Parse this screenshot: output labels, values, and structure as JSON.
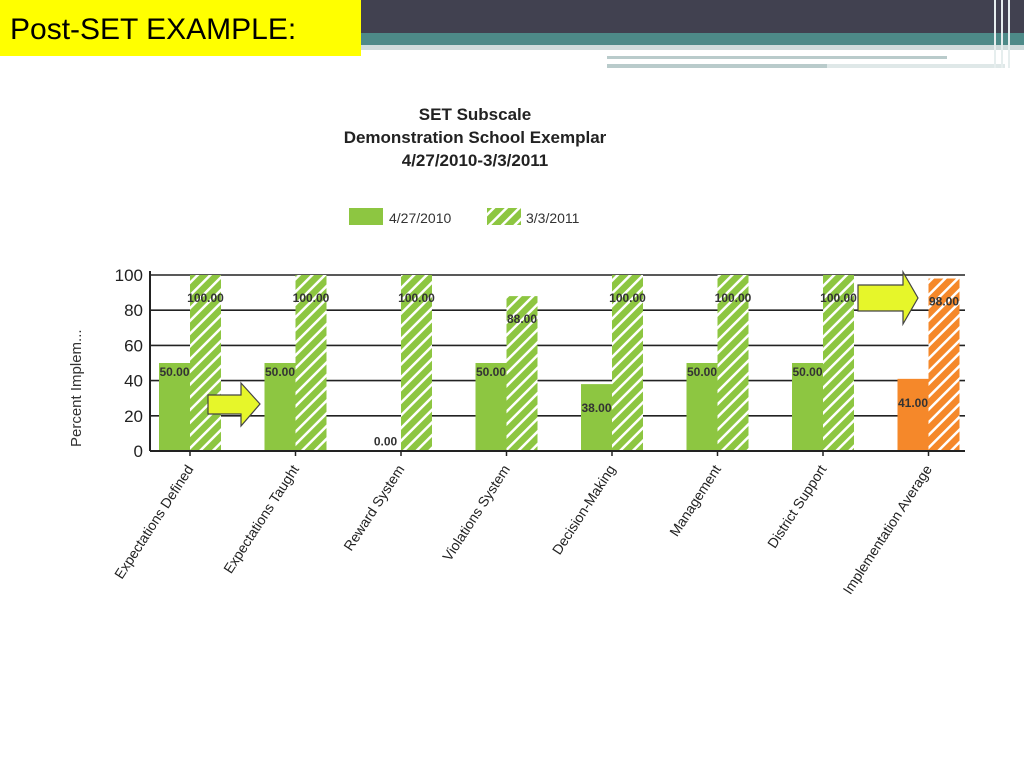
{
  "slide": {
    "title": "Post-SET EXAMPLE:"
  },
  "colors": {
    "series_2010": "#8dc641",
    "series_2011_stripe": "#8dc641",
    "average_2010": "#f5882a",
    "average_2011_stripe": "#f5882a",
    "highlight_title": "#ffff00",
    "arrow_fill": "#e6f62a"
  },
  "chart_data": {
    "type": "bar",
    "title": "SET Subscale",
    "subtitle_1": "Demonstration School Exemplar",
    "subtitle_2": "4/27/2010-3/3/2011",
    "ylabel": "Percent Implem...",
    "xlabel": "",
    "ylim": [
      0,
      100
    ],
    "yticks": [
      "0",
      "20",
      "40",
      "60",
      "80",
      "100"
    ],
    "grid": true,
    "legend_position": "top",
    "categories": [
      "Expectations Defined",
      "Expectations Taught",
      "Reward System",
      "Violations System",
      "Decision-Making",
      "Management",
      "District Support",
      "Implementation Average"
    ],
    "series": [
      {
        "name": "4/27/2010",
        "values": [
          50,
          50,
          0,
          50,
          38,
          50,
          50,
          41
        ],
        "labels": [
          "50.00",
          "50.00",
          "0.00",
          "50.00",
          "38.00",
          "50.00",
          "50.00",
          "41.00"
        ]
      },
      {
        "name": "3/3/2011",
        "values": [
          100,
          100,
          100,
          88,
          100,
          100,
          100,
          98
        ],
        "labels": [
          "100.00",
          "100.00",
          "100.00",
          "88.00",
          "100.00",
          "100.00",
          "100.00",
          "98.00"
        ]
      }
    ],
    "highlighted_category": "Implementation Average",
    "annotations": [
      {
        "type": "arrow",
        "points_to": "Expectations Taught"
      },
      {
        "type": "arrow",
        "points_to": "Implementation Average"
      }
    ]
  }
}
